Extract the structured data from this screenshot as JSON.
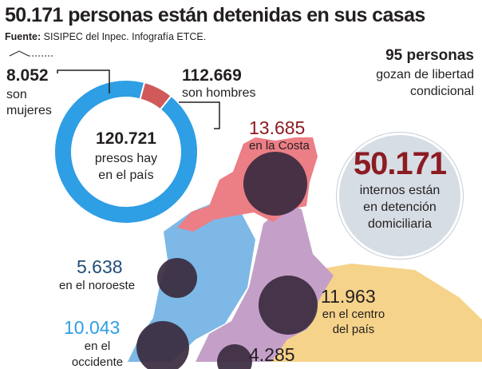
{
  "header": {
    "title": "50.171 personas están detenidas en sus casas",
    "source_label": "Fuente:",
    "source_text": "SISIPEC del Inpec. Infografía ETCE."
  },
  "donut": {
    "total_number": "120.721",
    "total_text_1": "presos hay",
    "total_text_2": "en el país",
    "women_number": "8.052",
    "women_text_1": "son",
    "women_text_2": "mujeres",
    "men_number": "112.669",
    "men_text": "son hombres"
  },
  "parole": {
    "number": "95 personas",
    "text_1": "gozan de libertad",
    "text_2": "condicional"
  },
  "summary": {
    "number": "50.171",
    "text_1": "internos están",
    "text_2": "en detención",
    "text_3": "domiciliaria"
  },
  "regions": {
    "costa": {
      "number": "13.685",
      "text": "en la Costa"
    },
    "noroeste": {
      "number": "5.638",
      "text": "en el noroeste"
    },
    "centro": {
      "number": "11.963",
      "text_1": "en el centro",
      "text_2": "del país"
    },
    "occidente": {
      "number": "10.043",
      "text_1": "en el",
      "text_2": "occidente"
    },
    "sur": {
      "number": "4.285"
    }
  },
  "colors": {
    "women": "#d05a5a",
    "men": "#2e9ee5",
    "costa": "#ec7e86",
    "noroeste": "#7db8e6",
    "centro": "#c4a0c8",
    "oriente": "#f6d38a",
    "bubble": "#3a2a3f",
    "accent_red": "#8b1c22",
    "summary_bg": "#d7dde5"
  },
  "chart_data": {
    "type": "pie",
    "title": "",
    "categories": [
      "son mujeres",
      "son hombres"
    ],
    "values": [
      8052,
      112669
    ],
    "total": 120721,
    "regional_breakdown": {
      "type": "bubble_map",
      "categories": [
        "en la Costa",
        "en el noroeste",
        "en el centro del país",
        "en el occidente",
        ""
      ],
      "values": [
        13685,
        5638,
        11963,
        10043,
        4285
      ]
    }
  }
}
